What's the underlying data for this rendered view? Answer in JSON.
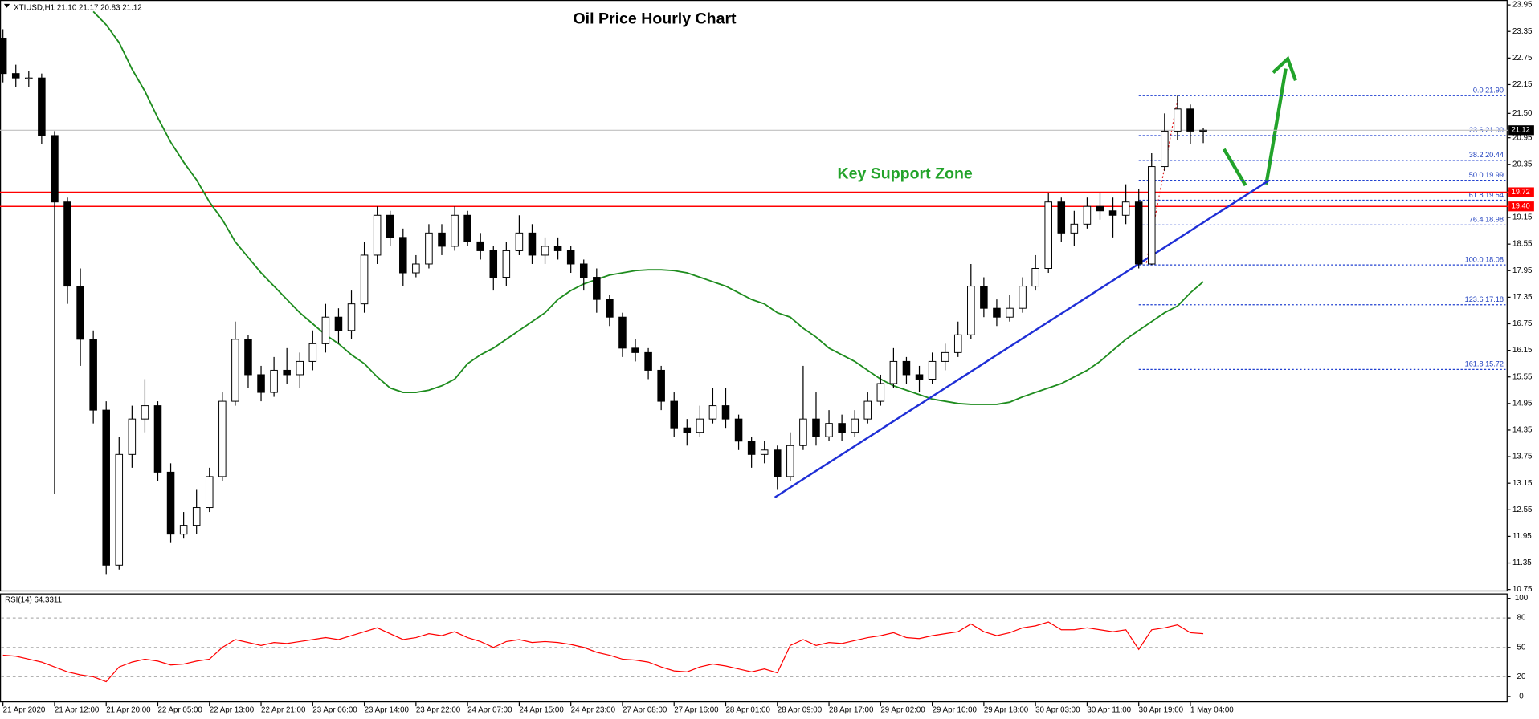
{
  "chart_data": [
    {
      "type": "candlestick",
      "title": "Oil Price Hourly Chart",
      "info": "XTIUSD,H1  21.10 21.17 20.83 21.12",
      "annotation": "Key Support Zone",
      "categories": [
        "21 Apr 2020",
        null,
        null,
        null,
        "21 Apr 12:00",
        null,
        null,
        null,
        "21 Apr 20:00",
        null,
        null,
        null,
        "22 Apr 05:00",
        null,
        null,
        null,
        "22 Apr 13:00",
        null,
        null,
        null,
        "22 Apr 21:00",
        null,
        null,
        null,
        "23 Apr 06:00",
        null,
        null,
        null,
        "23 Apr 14:00",
        null,
        null,
        null,
        "23 Apr 22:00",
        null,
        null,
        null,
        "24 Apr 07:00",
        null,
        null,
        null,
        "24 Apr 15:00",
        null,
        null,
        null,
        "24 Apr 23:00",
        null,
        null,
        null,
        "27 Apr 08:00",
        null,
        null,
        null,
        "27 Apr 16:00",
        null,
        null,
        null,
        "28 Apr 01:00",
        null,
        null,
        null,
        "28 Apr 09:00",
        null,
        null,
        null,
        "28 Apr 17:00",
        null,
        null,
        null,
        "29 Apr 02:00",
        null,
        null,
        null,
        "29 Apr 10:00",
        null,
        null,
        null,
        "29 Apr 18:00",
        null,
        null,
        null,
        "30 Apr 03:00",
        null,
        null,
        null,
        "30 Apr 11:00",
        null,
        null,
        null,
        "30 Apr 19:00",
        null,
        null,
        null,
        "1 May 04:00",
        null
      ],
      "ohlc": [
        [
          23.2,
          23.4,
          22.2,
          22.4
        ],
        [
          22.4,
          22.6,
          22.1,
          22.3
        ],
        [
          22.3,
          22.45,
          22.1,
          22.3
        ],
        [
          22.3,
          22.4,
          20.8,
          21.0
        ],
        [
          21.0,
          21.1,
          12.9,
          19.5
        ],
        [
          19.5,
          19.6,
          17.2,
          17.6
        ],
        [
          17.6,
          18.0,
          15.8,
          16.4
        ],
        [
          16.4,
          16.6,
          14.5,
          14.8
        ],
        [
          14.8,
          15.0,
          11.1,
          11.3
        ],
        [
          11.3,
          14.2,
          11.2,
          13.8
        ],
        [
          13.8,
          14.9,
          13.5,
          14.6
        ],
        [
          14.6,
          15.5,
          14.3,
          14.9
        ],
        [
          14.9,
          15.0,
          13.2,
          13.4
        ],
        [
          13.4,
          13.6,
          11.8,
          12.0
        ],
        [
          12.0,
          12.5,
          11.9,
          12.2
        ],
        [
          12.2,
          13.0,
          12.0,
          12.6
        ],
        [
          12.6,
          13.5,
          12.5,
          13.3
        ],
        [
          13.3,
          15.2,
          13.2,
          15.0
        ],
        [
          15.0,
          16.8,
          14.9,
          16.4
        ],
        [
          16.4,
          16.5,
          15.3,
          15.6
        ],
        [
          15.6,
          15.8,
          15.0,
          15.2
        ],
        [
          15.2,
          16.0,
          15.1,
          15.7
        ],
        [
          15.7,
          16.2,
          15.4,
          15.6
        ],
        [
          15.6,
          16.1,
          15.3,
          15.9
        ],
        [
          15.9,
          16.6,
          15.7,
          16.3
        ],
        [
          16.3,
          17.2,
          16.1,
          16.9
        ],
        [
          16.9,
          17.1,
          16.3,
          16.6
        ],
        [
          16.6,
          17.5,
          16.4,
          17.2
        ],
        [
          17.2,
          18.6,
          17.0,
          18.3
        ],
        [
          18.3,
          19.4,
          18.1,
          19.2
        ],
        [
          19.2,
          19.3,
          18.5,
          18.7
        ],
        [
          18.7,
          18.9,
          17.6,
          17.9
        ],
        [
          17.9,
          18.3,
          17.8,
          18.1
        ],
        [
          18.1,
          19.0,
          18.0,
          18.8
        ],
        [
          18.8,
          19.0,
          18.3,
          18.5
        ],
        [
          18.5,
          19.4,
          18.4,
          19.2
        ],
        [
          19.2,
          19.3,
          18.5,
          18.6
        ],
        [
          18.6,
          18.8,
          18.2,
          18.4
        ],
        [
          18.4,
          18.5,
          17.5,
          17.8
        ],
        [
          17.8,
          18.6,
          17.6,
          18.4
        ],
        [
          18.4,
          19.2,
          18.3,
          18.8
        ],
        [
          18.8,
          19.0,
          18.1,
          18.3
        ],
        [
          18.3,
          18.7,
          18.1,
          18.5
        ],
        [
          18.5,
          18.7,
          18.2,
          18.4
        ],
        [
          18.4,
          18.5,
          17.9,
          18.1
        ],
        [
          18.1,
          18.2,
          17.5,
          17.8
        ],
        [
          17.8,
          18.0,
          17.0,
          17.3
        ],
        [
          17.3,
          17.4,
          16.7,
          16.9
        ],
        [
          16.9,
          17.0,
          16.0,
          16.2
        ],
        [
          16.2,
          16.4,
          15.9,
          16.1
        ],
        [
          16.1,
          16.2,
          15.5,
          15.7
        ],
        [
          15.7,
          15.8,
          14.8,
          15.0
        ],
        [
          15.0,
          15.2,
          14.2,
          14.4
        ],
        [
          14.4,
          14.6,
          14.0,
          14.3
        ],
        [
          14.3,
          14.9,
          14.2,
          14.6
        ],
        [
          14.6,
          15.3,
          14.5,
          14.9
        ],
        [
          14.9,
          15.3,
          14.4,
          14.6
        ],
        [
          14.6,
          14.7,
          13.9,
          14.1
        ],
        [
          14.1,
          14.2,
          13.5,
          13.8
        ],
        [
          13.8,
          14.1,
          13.6,
          13.9
        ],
        [
          13.9,
          14.0,
          13.0,
          13.3
        ],
        [
          13.3,
          14.3,
          13.2,
          14.0
        ],
        [
          14.0,
          15.8,
          13.9,
          14.6
        ],
        [
          14.6,
          15.2,
          14.0,
          14.2
        ],
        [
          14.2,
          14.8,
          14.1,
          14.5
        ],
        [
          14.5,
          14.7,
          14.1,
          14.3
        ],
        [
          14.3,
          14.8,
          14.2,
          14.6
        ],
        [
          14.6,
          15.2,
          14.5,
          15.0
        ],
        [
          15.0,
          15.6,
          14.9,
          15.4
        ],
        [
          15.4,
          16.2,
          15.3,
          15.9
        ],
        [
          15.9,
          16.0,
          15.4,
          15.6
        ],
        [
          15.6,
          15.8,
          15.2,
          15.5
        ],
        [
          15.5,
          16.1,
          15.4,
          15.9
        ],
        [
          15.9,
          16.3,
          15.7,
          16.1
        ],
        [
          16.1,
          16.8,
          16.0,
          16.5
        ],
        [
          16.5,
          18.1,
          16.4,
          17.6
        ],
        [
          17.6,
          17.8,
          16.9,
          17.1
        ],
        [
          17.1,
          17.3,
          16.7,
          16.9
        ],
        [
          16.9,
          17.4,
          16.8,
          17.1
        ],
        [
          17.1,
          17.8,
          17.0,
          17.6
        ],
        [
          17.6,
          18.3,
          17.5,
          18.0
        ],
        [
          18.0,
          19.7,
          17.9,
          19.5
        ],
        [
          19.5,
          19.6,
          18.6,
          18.8
        ],
        [
          18.8,
          19.3,
          18.5,
          19.0
        ],
        [
          19.0,
          19.6,
          18.9,
          19.4
        ],
        [
          19.4,
          19.7,
          19.1,
          19.3
        ],
        [
          19.3,
          19.6,
          18.7,
          19.2
        ],
        [
          19.2,
          19.9,
          19.0,
          19.5
        ],
        [
          19.5,
          19.8,
          18.0,
          18.1
        ],
        [
          18.1,
          20.6,
          18.08,
          20.3
        ],
        [
          20.3,
          21.5,
          20.2,
          21.1
        ],
        [
          21.1,
          21.9,
          20.9,
          21.6
        ],
        [
          21.6,
          21.7,
          20.8,
          21.1
        ],
        [
          21.1,
          21.17,
          20.83,
          21.12
        ]
      ],
      "up_color": "#ffffff",
      "down_color": "#000000",
      "ylim": [
        10.75,
        23.95
      ],
      "yticks": [
        10.75,
        11.35,
        11.95,
        12.55,
        13.15,
        13.75,
        14.35,
        14.95,
        15.55,
        16.15,
        16.75,
        17.35,
        17.95,
        18.55,
        19.15,
        19.75,
        20.35,
        20.95,
        {
          "value": 21.5,
          "label": "21.50"
        },
        22.15,
        22.75,
        23.35,
        23.95
      ],
      "overlays": [
        {
          "color": "#1e8c1e",
          "values": [
            null,
            null,
            null,
            null,
            null,
            null,
            null,
            23.8,
            23.5,
            23.1,
            22.5,
            22.0,
            21.4,
            20.85,
            20.4,
            20.0,
            19.5,
            19.1,
            18.6,
            18.25,
            17.9,
            17.6,
            17.3,
            17.0,
            16.75,
            16.5,
            16.3,
            16.05,
            15.85,
            15.55,
            15.3,
            15.2,
            15.2,
            15.25,
            15.35,
            15.5,
            15.85,
            16.05,
            16.2,
            16.4,
            16.6,
            16.8,
            17.0,
            17.3,
            17.5,
            17.65,
            17.75,
            17.85,
            17.9,
            17.95,
            17.97,
            17.97,
            17.95,
            17.9,
            17.8,
            17.7,
            17.6,
            17.45,
            17.3,
            17.2,
            17.0,
            16.9,
            16.65,
            16.45,
            16.2,
            16.05,
            15.9,
            15.7,
            15.5,
            15.35,
            15.25,
            15.15,
            15.05,
            15.0,
            14.95,
            14.93,
            14.93,
            14.93,
            14.98,
            15.1,
            15.2,
            15.3,
            15.4,
            15.55,
            15.7,
            15.9,
            16.15,
            16.4,
            16.6,
            16.8,
            17.0,
            17.15,
            17.45,
            17.7
          ]
        }
      ],
      "trend_line": {
        "color": "#1f2fd6",
        "x": [
          59.8,
          98.1
        ],
        "y": [
          12.83,
          19.99
        ]
      },
      "hlines": [
        {
          "value": 19.72,
          "color": "#ff0000"
        },
        {
          "value": 19.4,
          "label": "19.40",
          "color": "#ff0000"
        },
        {
          "value": 21.12,
          "color": "#000000"
        }
      ],
      "fib_levels": [
        {
          "value": 21.9,
          "label": "0.0 21.90"
        },
        {
          "value": 21.0,
          "label": "23.6 21.00"
        },
        {
          "value": 20.44,
          "label": "38.2 20.44"
        },
        {
          "value": 19.99,
          "label": "50.0 19.99"
        },
        {
          "value": 19.54,
          "label": "61.8 19.54"
        },
        {
          "value": 18.98,
          "label": "76.4 18.98"
        },
        {
          "value": 18.08,
          "label": "100.0 18.08"
        },
        {
          "value": 17.18,
          "label": "123.6 17.18"
        },
        {
          "value": 15.72,
          "label": "161.8 15.72"
        }
      ],
      "fib_start": 88
    },
    {
      "type": "line",
      "title": "RSI(14) 64.3311",
      "ylim": [
        0,
        100
      ],
      "yticks": [
        0,
        20,
        50,
        80,
        100
      ],
      "levels": [
        20,
        50,
        80
      ],
      "series": [
        {
          "color": "#ff0000",
          "values": [
            42,
            41,
            38,
            35,
            30,
            25,
            22,
            20,
            15,
            30,
            35,
            38,
            36,
            32,
            33,
            36,
            38,
            50,
            58,
            55,
            52,
            55,
            54,
            56,
            58,
            60,
            58,
            62,
            66,
            70,
            64,
            58,
            60,
            64,
            62,
            66,
            60,
            56,
            50,
            56,
            58,
            55,
            56,
            55,
            53,
            50,
            45,
            42,
            38,
            37,
            35,
            30,
            26,
            25,
            30,
            33,
            31,
            28,
            25,
            28,
            24,
            52,
            58,
            52,
            55,
            54,
            57,
            60,
            62,
            65,
            60,
            59,
            62,
            64,
            66,
            74,
            66,
            62,
            65,
            70,
            72,
            76,
            68,
            68,
            70,
            68,
            66,
            68,
            48,
            68,
            70,
            73,
            65,
            64
          ]
        }
      ]
    }
  ]
}
